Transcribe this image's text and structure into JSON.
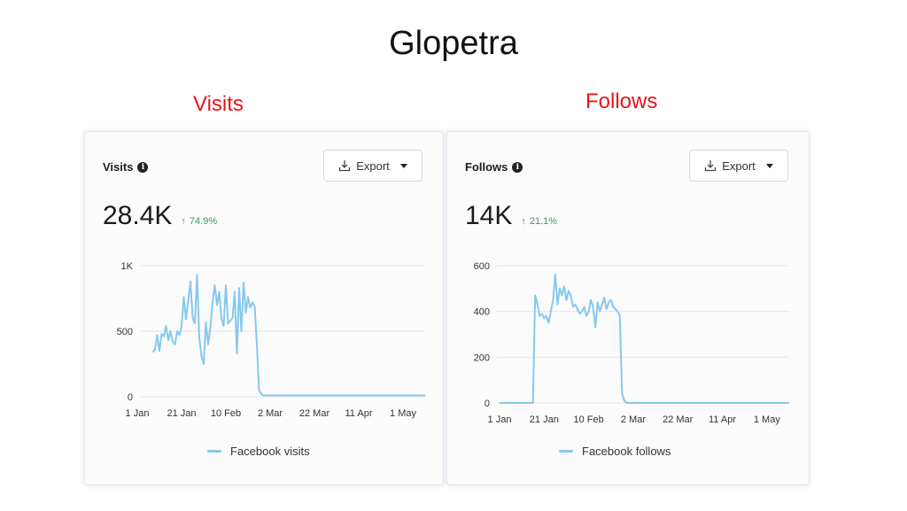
{
  "page": {
    "title": "Glopetra"
  },
  "captions": {
    "left": "Visits",
    "right": "Follows"
  },
  "cards": {
    "visits": {
      "title": "Visits",
      "export_label": "Export",
      "value": "28.4K",
      "delta": "74.9%",
      "legend": "Facebook visits"
    },
    "follows": {
      "title": "Follows",
      "export_label": "Export",
      "value": "14K",
      "delta": "21.1%",
      "legend": "Facebook follows"
    }
  },
  "colors": {
    "series": "#86c8ee",
    "grid": "#e6e6ea",
    "delta": "#3aa05a"
  },
  "icons": {
    "info": "info-icon",
    "export": "download-icon",
    "dropdown": "caret-down-icon"
  },
  "chart_data": [
    {
      "type": "line",
      "title": "Visits",
      "ylim": [
        0,
        1000
      ],
      "y_ticks": [
        0,
        500,
        1000
      ],
      "y_tick_labels": [
        "0",
        "500",
        "1K"
      ],
      "x_tick_labels": [
        "1 Jan",
        "21 Jan",
        "10 Feb",
        "2 Mar",
        "22 Mar",
        "11 Apr",
        "1 May"
      ],
      "x_tick_days": [
        1,
        21,
        41,
        61,
        81,
        101,
        121
      ],
      "xlim": [
        1,
        131
      ],
      "grid": true,
      "legend_position": "bottom",
      "series": [
        {
          "name": "Facebook visits",
          "x": [
            8,
            9,
            10,
            11,
            12,
            13,
            14,
            15,
            16,
            17,
            18,
            19,
            20,
            21,
            22,
            23,
            24,
            25,
            26,
            27,
            28,
            29,
            30,
            31,
            32,
            33,
            34,
            35,
            36,
            37,
            38,
            39,
            40,
            41,
            42,
            43,
            44,
            45,
            46,
            47,
            48,
            49,
            50,
            51,
            52,
            53,
            54,
            55,
            56,
            57,
            58,
            59,
            60,
            61,
            62,
            63,
            64,
            65,
            66,
            67,
            68,
            131
          ],
          "values": [
            340,
            360,
            470,
            350,
            480,
            460,
            540,
            430,
            500,
            420,
            400,
            500,
            470,
            540,
            760,
            590,
            730,
            880,
            600,
            560,
            930,
            450,
            310,
            250,
            570,
            400,
            530,
            720,
            850,
            700,
            800,
            600,
            540,
            850,
            560,
            580,
            600,
            800,
            330,
            830,
            500,
            870,
            640,
            760,
            680,
            720,
            690,
            400,
            50,
            20,
            10,
            10,
            10,
            10,
            10,
            10,
            10,
            10,
            10,
            10,
            10,
            10
          ]
        }
      ]
    },
    {
      "type": "line",
      "title": "Follows",
      "ylim": [
        0,
        600
      ],
      "y_ticks": [
        0,
        200,
        400,
        600
      ],
      "y_tick_labels": [
        "0",
        "200",
        "400",
        "600"
      ],
      "x_tick_labels": [
        "1 Jan",
        "21 Jan",
        "10 Feb",
        "2 Mar",
        "22 Mar",
        "11 Apr",
        "1 May"
      ],
      "x_tick_days": [
        1,
        21,
        41,
        61,
        81,
        101,
        121
      ],
      "xlim": [
        1,
        131
      ],
      "grid": true,
      "legend_position": "bottom",
      "series": [
        {
          "name": "Facebook follows",
          "x": [
            1,
            16,
            17,
            18,
            19,
            20,
            21,
            22,
            23,
            24,
            25,
            26,
            27,
            28,
            29,
            30,
            31,
            32,
            33,
            34,
            35,
            36,
            37,
            38,
            39,
            40,
            41,
            42,
            43,
            44,
            45,
            46,
            47,
            48,
            49,
            50,
            51,
            52,
            53,
            54,
            55,
            56,
            57,
            58,
            131
          ],
          "values": [
            0,
            0,
            470,
            430,
            380,
            390,
            370,
            380,
            350,
            400,
            450,
            560,
            430,
            500,
            470,
            510,
            450,
            490,
            470,
            420,
            430,
            410,
            390,
            400,
            420,
            380,
            400,
            450,
            420,
            330,
            440,
            400,
            430,
            460,
            410,
            440,
            450,
            420,
            410,
            400,
            380,
            40,
            10,
            0,
            0
          ]
        }
      ]
    }
  ]
}
